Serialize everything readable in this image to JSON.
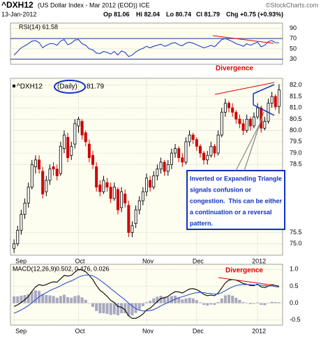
{
  "header": {
    "symbol": "^DXH12",
    "description": "(US Dollar Index - Mar 2012 (EOD)) ICE",
    "source": "©StockCharts.com",
    "date": "13-Jan-2012",
    "quote": [
      "Op 81.06",
      "Hi 82.04",
      "Lo 80.74",
      "Cl 81.79",
      "Chg +0.75 (+0.93%)"
    ]
  },
  "chart_data": [
    {
      "type": "line",
      "label": "RSI(14) 61.58",
      "annotation": "Divergence",
      "xlim": [
        -1,
        75
      ],
      "ylim": [
        20,
        100
      ],
      "yticks": [
        90,
        70,
        50,
        30
      ],
      "levels": [
        70,
        30
      ],
      "series": [
        {
          "color": "#2040c8",
          "values": [
            38,
            45,
            52,
            56,
            60,
            65,
            66,
            62,
            52,
            57,
            60,
            60,
            57,
            65,
            68,
            58,
            61,
            67,
            68,
            60,
            57,
            50,
            48,
            42,
            41,
            45,
            43,
            40,
            45,
            38,
            46,
            43,
            35,
            38,
            44,
            48,
            51,
            55,
            52,
            55,
            57,
            59,
            55,
            57,
            61,
            62,
            58,
            56,
            61,
            63,
            61,
            58,
            55,
            52,
            54,
            57,
            54,
            61,
            68,
            70,
            67,
            64,
            60,
            58,
            55,
            60,
            57,
            60,
            63,
            54,
            57,
            64,
            66,
            62,
            61.58
          ]
        }
      ]
    },
    {
      "type": "candlestick",
      "legend": [
        "^DXH12",
        "(Daily)",
        "81.79"
      ],
      "annotation": [
        "Inverted or Expanding Triangle",
        "signals confusion or",
        "congestion.  This can be either",
        "a continuation or a reversal",
        "pattern."
      ],
      "xlim": [
        -1,
        75
      ],
      "ylim": [
        74.5,
        82.3
      ],
      "yticks": [
        {
          "value": 82,
          "label": "82.0"
        },
        81.5,
        {
          "value": 81,
          "label": "81.0"
        },
        80.5,
        {
          "value": 80,
          "label": "80.0"
        },
        79.5,
        {
          "value": 79,
          "label": "79.0"
        },
        78.5,
        75.5,
        {
          "value": 75,
          "label": "75.0"
        }
      ],
      "xticks": [
        {
          "value": 0,
          "label": "Sep"
        },
        {
          "value": 18,
          "label": "Oct"
        },
        {
          "value": 37,
          "label": "Nov"
        },
        {
          "value": 51,
          "label": "Dec"
        },
        {
          "value": 68,
          "label": "2012"
        }
      ],
      "up_color": "#000000",
      "down_color": "#d00000",
      "open": [
        74.8,
        75.0,
        75.6,
        76.3,
        76.8,
        77.5,
        78.4,
        78.7,
        78.2,
        77.3,
        77.8,
        78.4,
        78.3,
        78.1,
        79.2,
        79.7,
        78.9,
        79.4,
        80.2,
        80.4,
        79.9,
        79.4,
        78.9,
        78.4,
        77.6,
        77.3,
        77.7,
        77.5,
        77.0,
        77.4,
        76.6,
        77.2,
        76.7,
        75.5,
        75.9,
        76.5,
        76.9,
        77.3,
        77.8,
        77.5,
        78.0,
        78.3,
        78.6,
        78.2,
        78.5,
        79.0,
        79.2,
        78.8,
        78.6,
        79.5,
        79.8,
        79.6,
        79.3,
        79.0,
        78.7,
        78.9,
        79.3,
        79.0,
        79.8,
        80.8,
        81.2,
        81.0,
        80.8,
        80.5,
        80.3,
        80.0,
        80.5,
        80.2,
        80.6,
        81.0,
        80.1,
        80.4,
        81.2,
        81.5,
        81.06
      ],
      "high": [
        75.2,
        75.8,
        76.5,
        77.0,
        77.7,
        78.7,
        78.9,
        78.9,
        78.4,
        78.0,
        78.5,
        78.6,
        78.5,
        79.5,
        80.0,
        79.9,
        79.5,
        80.5,
        80.6,
        80.5,
        80.0,
        79.6,
        79.1,
        78.6,
        77.8,
        78.0,
        77.9,
        77.7,
        77.7,
        77.5,
        77.5,
        77.4,
        76.9,
        76.0,
        76.7,
        77.1,
        77.5,
        78.1,
        78.0,
        78.2,
        78.5,
        78.8,
        78.7,
        78.7,
        79.2,
        79.4,
        79.3,
        79.0,
        79.7,
        80.0,
        79.9,
        79.7,
        79.4,
        79.1,
        79.1,
        79.5,
        79.4,
        80.0,
        81.0,
        81.4,
        81.3,
        81.2,
        80.9,
        80.7,
        80.5,
        80.7,
        80.6,
        80.8,
        81.2,
        81.1,
        80.6,
        81.4,
        81.7,
        81.6,
        82.04
      ],
      "low": [
        74.6,
        74.9,
        75.4,
        76.1,
        76.6,
        77.4,
        78.1,
        78.1,
        77.0,
        77.1,
        77.6,
        78.0,
        77.8,
        78.0,
        79.0,
        78.6,
        78.7,
        79.2,
        79.9,
        79.6,
        79.3,
        78.6,
        78.3,
        77.3,
        77.1,
        77.2,
        77.3,
        76.8,
        76.9,
        76.3,
        76.4,
        76.6,
        75.3,
        75.3,
        75.7,
        76.3,
        76.7,
        77.1,
        77.3,
        77.4,
        77.8,
        78.1,
        78.0,
        78.0,
        78.3,
        78.8,
        78.6,
        78.4,
        78.5,
        79.3,
        79.4,
        79.1,
        78.8,
        78.5,
        78.5,
        78.8,
        78.8,
        78.9,
        79.7,
        80.6,
        80.8,
        80.6,
        80.3,
        80.1,
        79.8,
        79.9,
        80.0,
        80.1,
        80.5,
        79.9,
        80.0,
        80.3,
        81.0,
        80.9,
        80.74
      ],
      "close": [
        75.0,
        75.6,
        76.3,
        76.8,
        77.5,
        78.5,
        78.7,
        78.3,
        77.2,
        77.8,
        78.3,
        78.3,
        78.0,
        79.3,
        79.8,
        78.8,
        79.3,
        80.3,
        80.5,
        79.8,
        79.5,
        78.8,
        78.5,
        77.5,
        77.3,
        77.8,
        77.5,
        77.0,
        77.5,
        76.5,
        77.3,
        76.8,
        75.5,
        75.8,
        76.5,
        76.9,
        77.3,
        77.9,
        77.5,
        78.0,
        78.3,
        78.6,
        78.2,
        78.5,
        79.0,
        79.2,
        78.8,
        78.6,
        79.5,
        79.8,
        79.6,
        79.3,
        79.0,
        78.7,
        78.9,
        79.3,
        79.0,
        79.8,
        80.8,
        81.2,
        81.0,
        80.8,
        80.5,
        80.3,
        80.0,
        80.5,
        80.2,
        80.6,
        81.0,
        80.1,
        80.4,
        81.2,
        81.5,
        81.04,
        81.79
      ]
    },
    {
      "type": "line",
      "label": [
        "MACD(12,26,9)",
        "0.502,",
        "0.476,",
        "0.026"
      ],
      "annotation": "Divergence",
      "xlim": [
        -1,
        75
      ],
      "ylim": [
        -0.65,
        1.15
      ],
      "yticks": [
        {
          "value": 1,
          "label": "1.0"
        },
        0.5,
        {
          "value": 0,
          "label": "0.0"
        },
        -0.5
      ],
      "xticks": [
        {
          "value": 0,
          "label": "Sep"
        },
        {
          "value": 18,
          "label": "Oct"
        },
        {
          "value": 37,
          "label": "Nov"
        },
        {
          "value": 51,
          "label": "Dec"
        },
        {
          "value": 68,
          "label": "2012"
        }
      ],
      "series": [
        {
          "type": "bar",
          "color": "#a8a8c0",
          "values": [
            0.2,
            0.2,
            0.22,
            0.24,
            0.27,
            0.34,
            0.38,
            0.36,
            0.27,
            0.24,
            0.23,
            0.21,
            0.16,
            0.21,
            0.25,
            0.18,
            0.16,
            0.21,
            0.23,
            0.17,
            0.1,
            -0.01,
            -0.11,
            -0.23,
            -0.3,
            -0.3,
            -0.32,
            -0.35,
            -0.33,
            -0.36,
            -0.3,
            -0.3,
            -0.38,
            -0.36,
            -0.29,
            -0.19,
            -0.09,
            0.03,
            0.07,
            0.14,
            0.19,
            0.22,
            0.19,
            0.18,
            0.21,
            0.22,
            0.17,
            0.11,
            0.14,
            0.16,
            0.14,
            0.09,
            0.02,
            -0.05,
            -0.07,
            -0.04,
            -0.05,
            0.03,
            0.14,
            0.23,
            0.25,
            0.22,
            0.16,
            0.1,
            0.03,
            0.01,
            -0.03,
            -0.02,
            0.02,
            -0.05,
            -0.06,
            -0.01,
            0.04,
            0.03,
            0.026
          ]
        },
        {
          "color": "#000000",
          "values": [
            -0.1,
            -0.05,
            0.02,
            0.1,
            0.2,
            0.35,
            0.48,
            0.55,
            0.52,
            0.55,
            0.6,
            0.63,
            0.62,
            0.72,
            0.82,
            0.8,
            0.82,
            0.92,
            1.0,
            0.98,
            0.93,
            0.82,
            0.7,
            0.52,
            0.38,
            0.3,
            0.2,
            0.08,
            0.02,
            -0.1,
            -0.12,
            -0.2,
            -0.38,
            -0.45,
            -0.45,
            -0.4,
            -0.32,
            -0.2,
            -0.15,
            -0.05,
            0.05,
            0.14,
            0.16,
            0.2,
            0.28,
            0.34,
            0.33,
            0.3,
            0.36,
            0.42,
            0.43,
            0.4,
            0.34,
            0.26,
            0.22,
            0.24,
            0.22,
            0.3,
            0.45,
            0.6,
            0.68,
            0.7,
            0.68,
            0.64,
            0.58,
            0.56,
            0.52,
            0.52,
            0.56,
            0.48,
            0.46,
            0.5,
            0.55,
            0.52,
            0.502
          ]
        },
        {
          "color": "#3050d0",
          "values": [
            -0.3,
            -0.25,
            -0.2,
            -0.14,
            -0.07,
            0.01,
            0.1,
            0.19,
            0.25,
            0.31,
            0.37,
            0.42,
            0.46,
            0.51,
            0.57,
            0.62,
            0.66,
            0.71,
            0.77,
            0.81,
            0.83,
            0.83,
            0.81,
            0.75,
            0.68,
            0.6,
            0.52,
            0.43,
            0.35,
            0.26,
            0.18,
            0.1,
            0.0,
            -0.09,
            -0.16,
            -0.21,
            -0.23,
            -0.23,
            -0.22,
            -0.19,
            -0.14,
            -0.08,
            -0.03,
            0.02,
            0.07,
            0.12,
            0.16,
            0.19,
            0.22,
            0.26,
            0.29,
            0.31,
            0.32,
            0.31,
            0.29,
            0.28,
            0.27,
            0.27,
            0.31,
            0.37,
            0.43,
            0.48,
            0.52,
            0.54,
            0.55,
            0.55,
            0.55,
            0.54,
            0.54,
            0.53,
            0.52,
            0.51,
            0.51,
            0.49,
            0.476
          ]
        }
      ]
    }
  ]
}
